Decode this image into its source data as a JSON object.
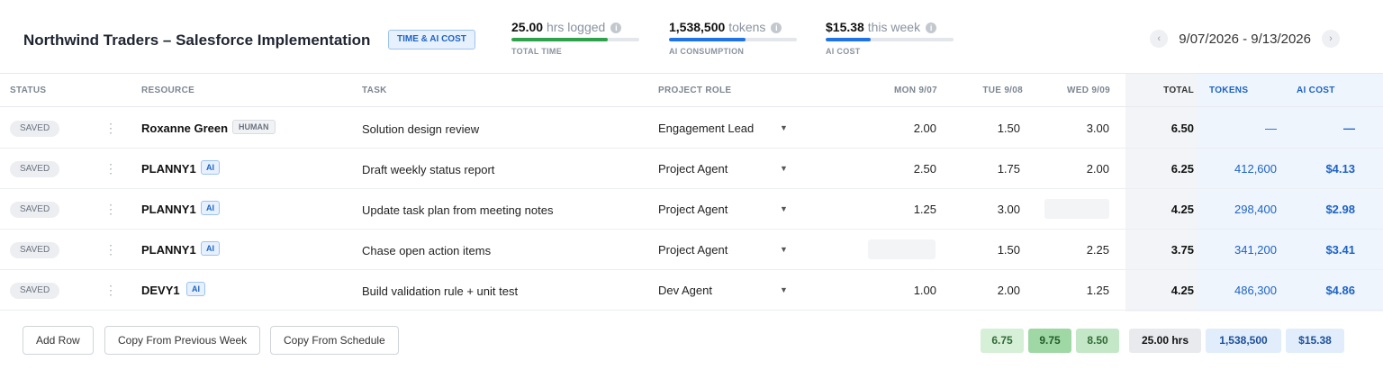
{
  "project": {
    "title": "Northwind Traders – Salesforce Implementation",
    "badge": "TIME & AI COST"
  },
  "metrics": [
    {
      "value": "25.00",
      "unit": "hrs logged",
      "caption": "TOTAL TIME",
      "progress": 0.75,
      "color": "#2ea24a"
    },
    {
      "value": "1,538,500",
      "unit": "tokens",
      "caption": "AI CONSUMPTION",
      "progress": 0.6,
      "color": "#1e73e8"
    },
    {
      "value": "$15.38",
      "unit": "this week",
      "caption": "AI COST",
      "progress": 0.35,
      "color": "#1e73e8"
    }
  ],
  "date_range": "9/07/2026 - 9/13/2026",
  "nav": {
    "prev_icon": "chevron-left-icon",
    "next_icon": "chevron-right-icon"
  },
  "columns": {
    "status": "STATUS",
    "resource": "RESOURCE",
    "task": "TASK",
    "role": "PROJECT ROLE",
    "mon": "MON 9/07",
    "tue": "TUE 9/08",
    "wed": "WED 9/09",
    "total": "TOTAL",
    "tokens": "TOKENS",
    "cost": "AI COST"
  },
  "rows": [
    {
      "status": "SAVED",
      "resource": "Roxanne Green",
      "tag": "HUMAN",
      "task": "Solution design review",
      "role": "Engagement Lead",
      "mon": "2.00",
      "tue": "1.50",
      "wed": "3.00",
      "total": "6.50",
      "tokens": "—",
      "cost": "—"
    },
    {
      "status": "SAVED",
      "resource": "PLANNY1",
      "tag": "AI",
      "task": "Draft weekly status report",
      "role": "Project Agent",
      "mon": "2.50",
      "tue": "1.75",
      "wed": "2.00",
      "total": "6.25",
      "tokens": "412,600",
      "cost": "$4.13"
    },
    {
      "status": "SAVED",
      "resource": "PLANNY1",
      "tag": "AI",
      "task": "Update task plan from meeting notes",
      "role": "Project Agent",
      "mon": "1.25",
      "tue": "3.00",
      "wed": "",
      "total": "4.25",
      "tokens": "298,400",
      "cost": "$2.98"
    },
    {
      "status": "SAVED",
      "resource": "PLANNY1",
      "tag": "AI",
      "task": "Chase open action items",
      "role": "Project Agent",
      "mon": "",
      "tue": "1.50",
      "wed": "2.25",
      "total": "3.75",
      "tokens": "341,200",
      "cost": "$3.41"
    },
    {
      "status": "SAVED",
      "resource": "DEVY1",
      "tag": "AI",
      "task": "Build validation rule + unit test",
      "role": "Dev Agent",
      "mon": "1.00",
      "tue": "2.00",
      "wed": "1.25",
      "total": "4.25",
      "tokens": "486,300",
      "cost": "$4.86"
    }
  ],
  "buttons": {
    "add_row": "Add Row",
    "copy_prev": "Copy From Previous Week",
    "copy_schedule": "Copy From Schedule"
  },
  "totals": {
    "mon": "6.75",
    "tue": "9.75",
    "wed": "8.50",
    "hours": "25.00 hrs",
    "tokens": "1,538,500",
    "cost": "$15.38"
  }
}
